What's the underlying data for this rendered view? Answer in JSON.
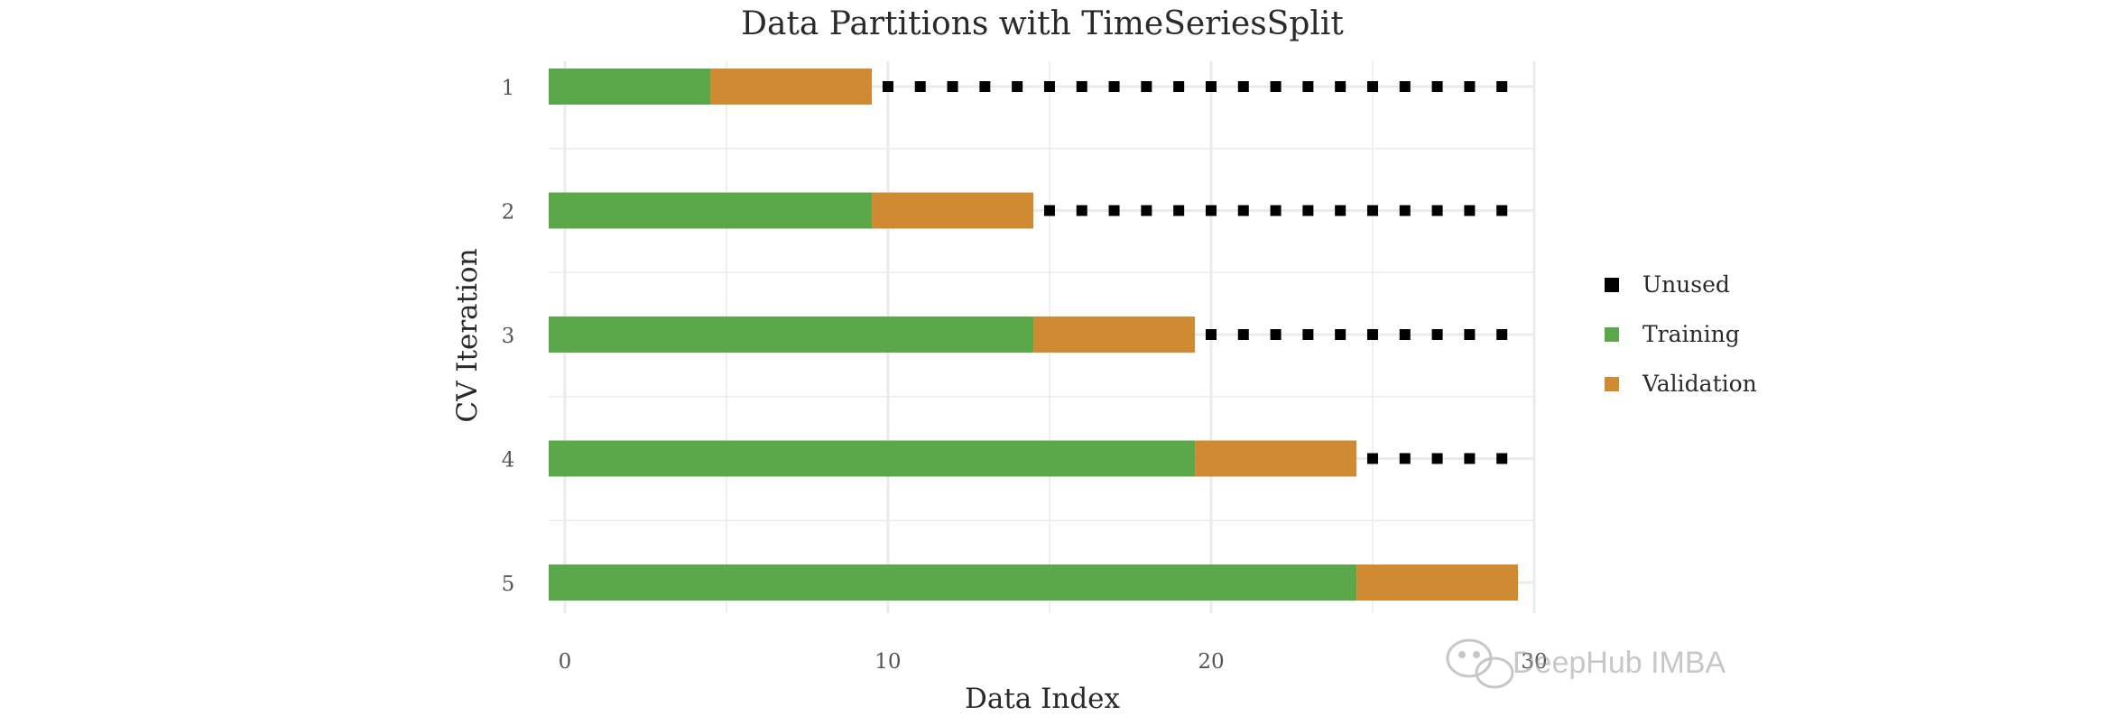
{
  "chart_data": {
    "type": "timeseries-split",
    "title": "Data Partitions with TimeSeriesSplit",
    "xlabel": "Data Index",
    "ylabel": "CV Iteration",
    "xlim": [
      -0.5,
      30
    ],
    "xticks": [
      0,
      10,
      20,
      30
    ],
    "grid": true,
    "legend_position": "right",
    "legend": [
      {
        "key": "unused",
        "label": "Unused",
        "color": "#000000"
      },
      {
        "key": "training",
        "label": "Training",
        "color": "#5aa84a"
      },
      {
        "key": "validation",
        "label": "Validation",
        "color": "#d08a32"
      }
    ],
    "iterations": [
      {
        "label": "1",
        "train": [
          0,
          5
        ],
        "validation": [
          5,
          10
        ],
        "unused": [
          10,
          11,
          12,
          13,
          14,
          15,
          16,
          17,
          18,
          19,
          20,
          21,
          22,
          23,
          24,
          25,
          26,
          27,
          28,
          29
        ]
      },
      {
        "label": "2",
        "train": [
          0,
          10
        ],
        "validation": [
          10,
          15
        ],
        "unused": [
          15,
          16,
          17,
          18,
          19,
          20,
          21,
          22,
          23,
          24,
          25,
          26,
          27,
          28,
          29
        ]
      },
      {
        "label": "3",
        "train": [
          0,
          15
        ],
        "validation": [
          15,
          20
        ],
        "unused": [
          20,
          21,
          22,
          23,
          24,
          25,
          26,
          27,
          28,
          29
        ]
      },
      {
        "label": "4",
        "train": [
          0,
          20
        ],
        "validation": [
          20,
          25
        ],
        "unused": [
          25,
          26,
          27,
          28,
          29
        ]
      },
      {
        "label": "5",
        "train": [
          0,
          25
        ],
        "validation": [
          25,
          30
        ],
        "unused": []
      }
    ]
  },
  "watermark": {
    "text": "DeepHub IMBA"
  },
  "colors": {
    "grid": "#ebebeb",
    "text": "#2a2a2a",
    "tick": "#555555"
  }
}
